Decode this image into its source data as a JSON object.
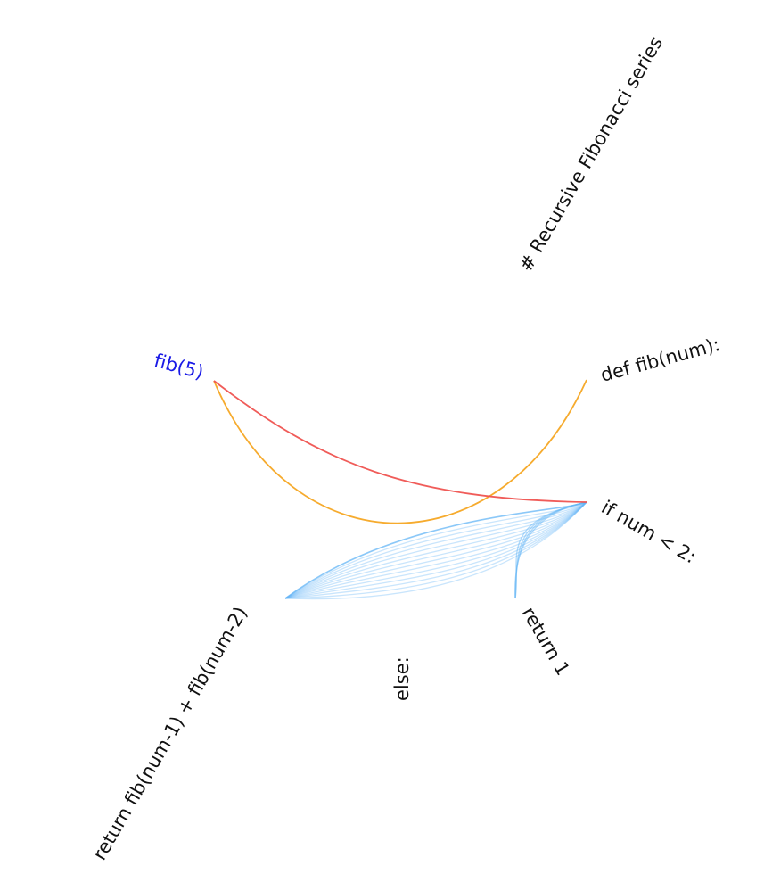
{
  "nodes": [
    {
      "id": "comment",
      "label": "# Recursive Fibonacci series",
      "color": "#111111"
    },
    {
      "id": "def",
      "label": "def fib(num):",
      "color": "#111111"
    },
    {
      "id": "call",
      "label": "fib(5)",
      "color": "#1a1ae6"
    },
    {
      "id": "if",
      "label": "if num < 2:",
      "color": "#111111"
    },
    {
      "id": "return1",
      "label": "return 1",
      "color": "#111111"
    },
    {
      "id": "else",
      "label": "else:",
      "color": "#111111"
    },
    {
      "id": "recurse",
      "label": "return fib(num-1) + fib(num-2)",
      "color": "#111111"
    }
  ],
  "edges": [
    {
      "from": "call",
      "to": "def",
      "color": "#f5a623",
      "count": 1
    },
    {
      "from": "call",
      "to": "if",
      "color": "#ef5350",
      "count": 1
    },
    {
      "from": "if",
      "to": "recurse",
      "color": "#64b5f6",
      "count": 14
    },
    {
      "from": "if",
      "to": "return1",
      "color": "#64b5f6",
      "count": 4
    }
  ],
  "colors": {
    "call_to_def": "#f5a623",
    "call_to_if": "#ef5350",
    "recursion": "#64b5f6",
    "active_label": "#1a1ae6",
    "label": "#111111"
  }
}
